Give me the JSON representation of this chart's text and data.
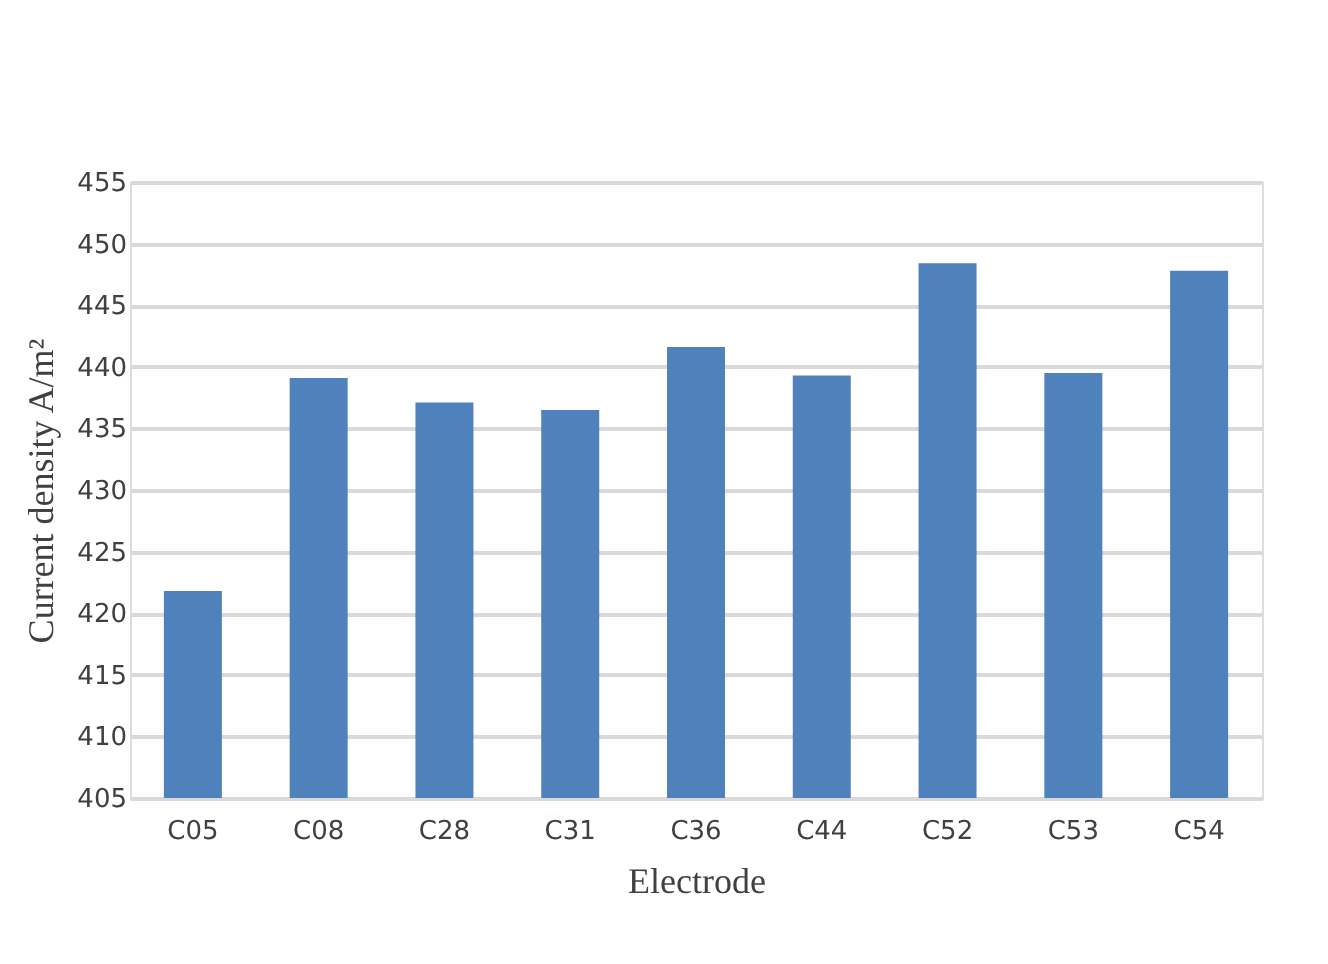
{
  "chart_data": {
    "type": "bar",
    "xlabel": "Electrode",
    "ylabel": "Current density A/m²",
    "categories": [
      "C05",
      "C08",
      "C28",
      "C31",
      "C36",
      "C44",
      "C52",
      "C53",
      "C54"
    ],
    "values": [
      421.8,
      439.1,
      437.1,
      436.5,
      441.6,
      439.3,
      448.4,
      439.5,
      447.8
    ],
    "color": "#4f81bd",
    "ylim": [
      405,
      455
    ],
    "yticks": [
      405,
      410,
      415,
      420,
      425,
      430,
      435,
      440,
      445,
      450,
      455
    ],
    "grid": "y"
  }
}
